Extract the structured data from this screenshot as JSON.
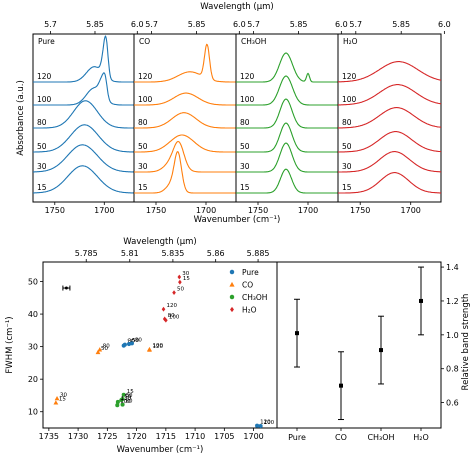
{
  "chart_data": [
    {
      "type": "line",
      "panels": [
        "Pure",
        "CO",
        "CH₃OH",
        "H₂O"
      ],
      "temperatures": [
        "15",
        "30",
        "50",
        "80",
        "100",
        "120"
      ],
      "series_colors": {
        "Pure": "#1f77b4",
        "CO": "#ff7f0e",
        "CH₃OH": "#2ca02c",
        "H₂O": "#d62728"
      },
      "xlabel": "Wavenumber (cm⁻¹)",
      "ylabel": "Absorbance (a.u.)",
      "top_xlabel": "Wavelength (μm)",
      "xlim": [
        1772,
        1670
      ],
      "xticks": [
        "1750",
        "1700"
      ],
      "top_ticks": [
        "5.7",
        "5.85",
        "6.0"
      ],
      "peaks": {
        "Pure": {
          "15": [
            [
              1722,
              15,
              0.8
            ]
          ],
          "30": [
            [
              1722,
              15,
              0.8
            ]
          ],
          "50": [
            [
              1720,
              14,
              0.8
            ]
          ],
          "80": [
            [
              1719,
              12,
              0.8
            ]
          ],
          "100": [
            [
              1710,
              8,
              0.5
            ],
            [
              1702,
              3,
              0.45
            ],
            [
              1699,
              2,
              0.4
            ]
          ],
          "120": [
            [
              1710,
              8,
              0.45
            ],
            [
              1700,
              2.5,
              0.6
            ],
            [
              1698,
              2,
              0.7
            ]
          ]
        },
        "CO": {
          "15": [
            [
              1728,
              3.5,
              1.0
            ],
            [
              1733,
              6,
              0.3
            ]
          ],
          "30": [
            [
              1727,
              5,
              0.6
            ],
            [
              1732,
              8,
              0.35
            ]
          ],
          "50": [
            [
              1724,
              12,
              0.5
            ]
          ],
          "80": [
            [
              1722,
              12,
              0.45
            ]
          ],
          "100": [
            [
              1720,
              12,
              0.35
            ]
          ],
          "120": [
            [
              1699,
              2.5,
              1.0
            ],
            [
              1716,
              12,
              0.3
            ]
          ]
        },
        "CH₃OH": {
          "15": [
            [
              1722,
              5.5,
              0.7
            ]
          ],
          "30": [
            [
              1722,
              6,
              0.85
            ]
          ],
          "50": [
            [
              1722,
              6,
              0.85
            ]
          ],
          "80": [
            [
              1722,
              6,
              0.85
            ]
          ],
          "100": [
            [
              1722,
              6.5,
              0.85
            ]
          ],
          "120": [
            [
              1722,
              6.5,
              0.85
            ],
            [
              1700,
              1.5,
              0.25
            ]
          ]
        },
        "H₂O": {
          "15": [
            [
              1716,
              14,
              0.6
            ]
          ],
          "30": [
            [
              1716,
              15,
              0.6
            ]
          ],
          "50": [
            [
              1715,
              16,
              0.6
            ]
          ],
          "80": [
            [
              1714,
              17,
              0.6
            ]
          ],
          "100": [
            [
              1713,
              18,
              0.6
            ]
          ],
          "120": [
            [
              1712,
              19,
              0.6
            ]
          ]
        }
      }
    },
    {
      "type": "scatter",
      "xlabel": "Wavenumber (cm⁻¹)",
      "ylabel": "FWHM (cm⁻¹)",
      "top_xlabel": "Wavelength (μm)",
      "xlim": [
        1736,
        1696
      ],
      "ylim": [
        5,
        56
      ],
      "xticks": [
        "1735",
        "1730",
        "1725",
        "1720",
        "1715",
        "1710",
        "1705",
        "1700"
      ],
      "yticks": [
        "10",
        "20",
        "30",
        "40",
        "50"
      ],
      "top_ticks": [
        "5.785",
        "5.81",
        "5.835",
        "5.86",
        "5.885"
      ],
      "legend": [
        "Pure",
        "CO",
        "CH₃OH",
        "H₂O"
      ],
      "legend_position": "top-right",
      "series": [
        {
          "name": "Pure",
          "color": "#1f77b4",
          "marker": "circle",
          "points": [
            {
              "x": 1722.2,
              "y": 30.3,
              "label": "15"
            },
            {
              "x": 1722.0,
              "y": 30.6,
              "label": "30"
            },
            {
              "x": 1721.3,
              "y": 30.8,
              "label": "50"
            },
            {
              "x": 1720.8,
              "y": 31.0,
              "label": "80"
            },
            {
              "x": 1698.8,
              "y": 5.6,
              "label": "100"
            },
            {
              "x": 1699.4,
              "y": 5.7,
              "label": "120"
            }
          ]
        },
        {
          "name": "CO",
          "color": "#ff7f0e",
          "marker": "triangle",
          "points": [
            {
              "x": 1733.8,
              "y": 12.8,
              "label": "15"
            },
            {
              "x": 1733.6,
              "y": 14.1,
              "label": "30"
            },
            {
              "x": 1726.6,
              "y": 28.3,
              "label": "50"
            },
            {
              "x": 1726.3,
              "y": 29.1,
              "label": "80"
            },
            {
              "x": 1717.8,
              "y": 29.2,
              "label": "100"
            },
            {
              "x": 1717.8,
              "y": 29.0,
              "label": "120"
            }
          ]
        },
        {
          "name": "CH₃OH",
          "color": "#2ca02c",
          "marker": "circle",
          "points": [
            {
              "x": 1722.2,
              "y": 15.2,
              "label": "15"
            },
            {
              "x": 1722.4,
              "y": 13.9,
              "label": "30"
            },
            {
              "x": 1722.6,
              "y": 13.6,
              "label": "50"
            },
            {
              "x": 1722.4,
              "y": 12.2,
              "label": "80"
            },
            {
              "x": 1723.3,
              "y": 12.0,
              "label": "100"
            },
            {
              "x": 1723.2,
              "y": 13.0,
              "label": "120"
            }
          ]
        },
        {
          "name": "H₂O",
          "color": "#d62728",
          "marker": "diamond",
          "points": [
            {
              "x": 1712.6,
              "y": 49.8,
              "label": "15"
            },
            {
              "x": 1712.7,
              "y": 51.4,
              "label": "30"
            },
            {
              "x": 1713.6,
              "y": 46.6,
              "label": "50"
            },
            {
              "x": 1715.2,
              "y": 38.5,
              "label": "80"
            },
            {
              "x": 1715.0,
              "y": 38.1,
              "label": "100"
            },
            {
              "x": 1715.4,
              "y": 41.5,
              "label": "120"
            }
          ]
        }
      ],
      "errorbar_example": {
        "x": 1732.0,
        "y": 48.0,
        "xerr": 0.6
      }
    },
    {
      "type": "errorbar",
      "categories": [
        "Pure",
        "CO",
        "CH₃OH",
        "H₂O"
      ],
      "values": [
        1.01,
        0.7,
        0.91,
        1.2
      ],
      "err_low": [
        0.2,
        0.2,
        0.2,
        0.2
      ],
      "err_high": [
        0.2,
        0.2,
        0.2,
        0.2
      ],
      "ylabel": "Relative band strength",
      "ylim": [
        0.45,
        1.43
      ],
      "yticks": [
        "0.6",
        "0.8",
        "1.0",
        "1.2",
        "1.4"
      ]
    }
  ]
}
